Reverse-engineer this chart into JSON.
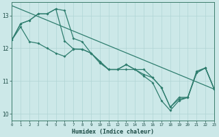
{
  "xlabel": "Humidex (Indice chaleur)",
  "ylabel": "",
  "background_color": "#cce8e8",
  "grid_color": "#b0d4d4",
  "line_color": "#2e7d6e",
  "xlim": [
    0,
    23
  ],
  "ylim": [
    9.8,
    13.4
  ],
  "xticks": [
    0,
    1,
    2,
    3,
    4,
    5,
    6,
    7,
    8,
    9,
    10,
    11,
    12,
    13,
    14,
    15,
    16,
    17,
    18,
    19,
    20,
    21,
    22,
    23
  ],
  "yticks": [
    10,
    11,
    12,
    13
  ],
  "series": [
    [
      12.25,
      12.75,
      12.85,
      13.05,
      13.05,
      13.2,
      13.15,
      12.3,
      12.2,
      11.85,
      11.55,
      11.35,
      11.35,
      11.35,
      11.35,
      11.2,
      11.1,
      10.8,
      10.2,
      10.45,
      10.5,
      11.25,
      11.4,
      10.75
    ],
    [
      12.25,
      12.65,
      12.2,
      12.15,
      12.0,
      11.85,
      11.75,
      11.97,
      11.97,
      11.85,
      11.6,
      11.35,
      11.35,
      11.5,
      11.35,
      11.15,
      10.95,
      10.4,
      10.1,
      10.4,
      10.5,
      11.25,
      11.4,
      10.75
    ],
    [
      12.25,
      12.75,
      12.85,
      13.05,
      13.05,
      13.2,
      12.22,
      11.98,
      11.97,
      11.85,
      11.6,
      11.35,
      11.35,
      11.5,
      11.35,
      11.35,
      11.1,
      10.8,
      10.2,
      10.5,
      10.5,
      11.3,
      11.4,
      10.75
    ]
  ],
  "straight_line": [
    [
      0,
      13.3
    ],
    [
      23,
      10.75
    ]
  ]
}
